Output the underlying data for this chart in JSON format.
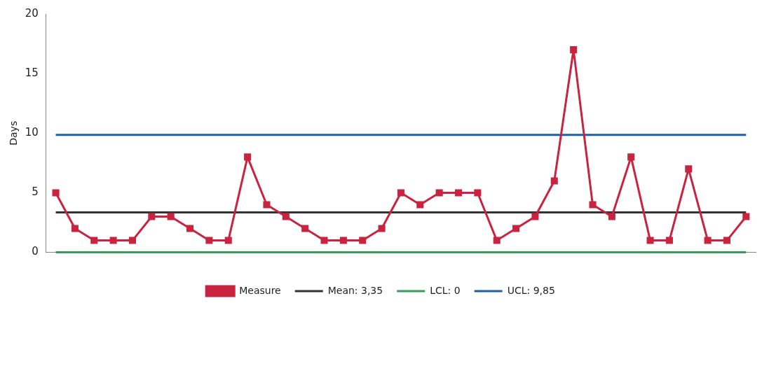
{
  "chart_data": {
    "type": "line",
    "ylabel": "Days",
    "categories": [
      null,
      null,
      null,
      null,
      null,
      null,
      null,
      null,
      null,
      null,
      null,
      null,
      null,
      null,
      null,
      null,
      null,
      null,
      null,
      null,
      null,
      null,
      null,
      null,
      null,
      null,
      null,
      null,
      null,
      null,
      null,
      null,
      null,
      null,
      null,
      null,
      null
    ],
    "ylim": [
      0,
      20
    ],
    "yticks": [
      0,
      5,
      10,
      15,
      20
    ],
    "grid": false,
    "legend": "bottom",
    "series": [
      {
        "name": "Measure",
        "color": "#c8243f",
        "marker": "square",
        "values": [
          5,
          2,
          1,
          1,
          1,
          3,
          3,
          2,
          1,
          1,
          8,
          4,
          3,
          2,
          1,
          1,
          1,
          2,
          5,
          4,
          5,
          5,
          5,
          1,
          2,
          3,
          6,
          17,
          4,
          3,
          8,
          1,
          1,
          7,
          1,
          1,
          3
        ]
      },
      {
        "name": "Mean: 3,35",
        "color": "#333333",
        "marker": "none",
        "values": [
          3.35,
          3.35,
          3.35,
          3.35,
          3.35,
          3.35,
          3.35,
          3.35,
          3.35,
          3.35,
          3.35,
          3.35,
          3.35,
          3.35,
          3.35,
          3.35,
          3.35,
          3.35,
          3.35,
          3.35,
          3.35,
          3.35,
          3.35,
          3.35,
          3.35,
          3.35,
          3.35,
          3.35,
          3.35,
          3.35,
          3.35,
          3.35,
          3.35,
          3.35,
          3.35,
          3.35,
          3.35
        ]
      },
      {
        "name": "LCL: 0",
        "color": "#3a9a5a",
        "marker": "none",
        "values": [
          0,
          0,
          0,
          0,
          0,
          0,
          0,
          0,
          0,
          0,
          0,
          0,
          0,
          0,
          0,
          0,
          0,
          0,
          0,
          0,
          0,
          0,
          0,
          0,
          0,
          0,
          0,
          0,
          0,
          0,
          0,
          0,
          0,
          0,
          0,
          0,
          0
        ]
      },
      {
        "name": "UCL: 9,85",
        "color": "#1f5fa6",
        "marker": "none",
        "values": [
          9.85,
          9.85,
          9.85,
          9.85,
          9.85,
          9.85,
          9.85,
          9.85,
          9.85,
          9.85,
          9.85,
          9.85,
          9.85,
          9.85,
          9.85,
          9.85,
          9.85,
          9.85,
          9.85,
          9.85,
          9.85,
          9.85,
          9.85,
          9.85,
          9.85,
          9.85,
          9.85,
          9.85,
          9.85,
          9.85,
          9.85,
          9.85,
          9.85,
          9.85,
          9.85,
          9.85,
          9.85
        ]
      }
    ]
  }
}
